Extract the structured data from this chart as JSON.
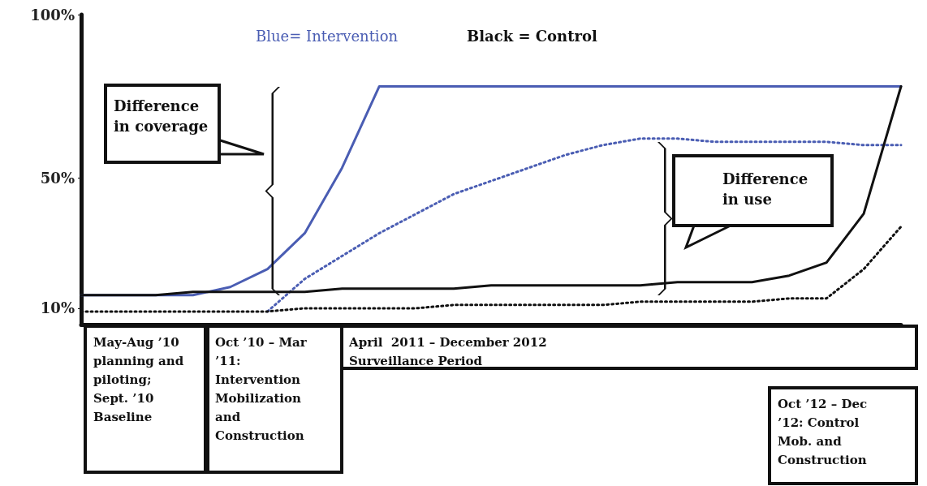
{
  "chart_data": {
    "type": "line",
    "categories": [
      null,
      null,
      null,
      null,
      null,
      null,
      null,
      null,
      null,
      null,
      null,
      null,
      null,
      null,
      null,
      null,
      null,
      null,
      null,
      null,
      null,
      null,
      null
    ],
    "ylim": [
      5,
      100
    ],
    "yticks": [
      {
        "value": 10,
        "label": "10%"
      },
      {
        "value": 50,
        "label": "50%"
      },
      {
        "value": 100,
        "label": "100%"
      }
    ],
    "grid": false,
    "marker": "none",
    "series": [
      {
        "color": "#4a5db3",
        "line_style": "solid",
        "values": [
          14,
          14,
          14,
          14,
          16.5,
          22,
          33,
          53,
          78,
          78,
          78,
          78,
          78,
          78,
          78,
          78,
          78,
          78,
          78,
          78,
          78,
          78,
          78
        ]
      },
      {
        "color": "#4a5db3",
        "line_style": "dotted",
        "values": [
          null,
          null,
          null,
          null,
          null,
          9,
          19,
          26,
          33,
          39,
          45,
          49,
          53,
          57,
          60,
          62,
          62,
          61,
          61,
          61,
          61,
          60,
          60
        ]
      },
      {
        "color": "#111111",
        "line_style": "solid",
        "values": [
          14,
          14,
          14,
          15,
          15,
          15,
          15,
          16,
          16,
          16,
          16,
          17,
          17,
          17,
          17,
          17,
          18,
          18,
          18,
          20,
          24,
          39,
          78
        ]
      },
      {
        "color": "#111111",
        "line_style": "dotted",
        "values": [
          9,
          9,
          9,
          9,
          9,
          9,
          10,
          10,
          10,
          10,
          11,
          11,
          11,
          11,
          11,
          12,
          12,
          12,
          12,
          13,
          13,
          22,
          35
        ]
      }
    ],
    "annotations": [
      "Blue= Intervention",
      "Black = Control",
      "Difference\nin coverage",
      "Difference\nin use",
      "May-Aug ’10\nplanning and\npiloting;\nSept. ’10\nBaseline",
      "Oct ’10 – Mar\n’11:\nIntervention\nMobilization\nand\nConstruction",
      "April  2011 – December 2012\nSurveillance Period",
      "Oct ’12 – Dec\n’12: Control\nMob. and\nConstruction"
    ]
  }
}
